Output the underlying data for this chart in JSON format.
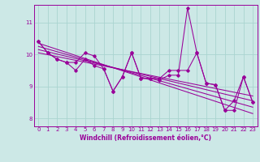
{
  "xlabel": "Windchill (Refroidissement éolien,°C)",
  "bg_color": "#cce8e6",
  "grid_color": "#aad4d0",
  "line_color": "#990099",
  "xlim": [
    -0.5,
    23.5
  ],
  "ylim": [
    7.75,
    11.55
  ],
  "yticks": [
    8,
    9,
    10,
    11
  ],
  "xticks": [
    0,
    1,
    2,
    3,
    4,
    5,
    6,
    7,
    8,
    9,
    10,
    11,
    12,
    13,
    14,
    15,
    16,
    17,
    18,
    19,
    20,
    21,
    22,
    23
  ],
  "series": [
    [
      10.4,
      10.05,
      9.85,
      9.75,
      9.5,
      9.85,
      9.65,
      9.55,
      8.85,
      9.3,
      10.05,
      9.25,
      9.25,
      9.2,
      9.35,
      9.35,
      11.45,
      10.05,
      9.1,
      9.05,
      8.25,
      8.55,
      9.3,
      8.5
    ],
    [
      10.4,
      10.05,
      9.85,
      9.75,
      9.75,
      10.05,
      9.95,
      9.55,
      8.85,
      9.3,
      10.05,
      9.25,
      9.25,
      9.25,
      9.5,
      9.5,
      9.5,
      10.05,
      9.1,
      9.05,
      8.25,
      8.25,
      9.3,
      8.5
    ]
  ],
  "trend_lines": [
    [
      10.35,
      8.15
    ],
    [
      10.25,
      8.35
    ],
    [
      10.15,
      8.55
    ],
    [
      10.05,
      8.7
    ]
  ],
  "tick_fontsize": 5.0,
  "xlabel_fontsize": 5.5,
  "lw": 0.75,
  "ms": 1.8
}
